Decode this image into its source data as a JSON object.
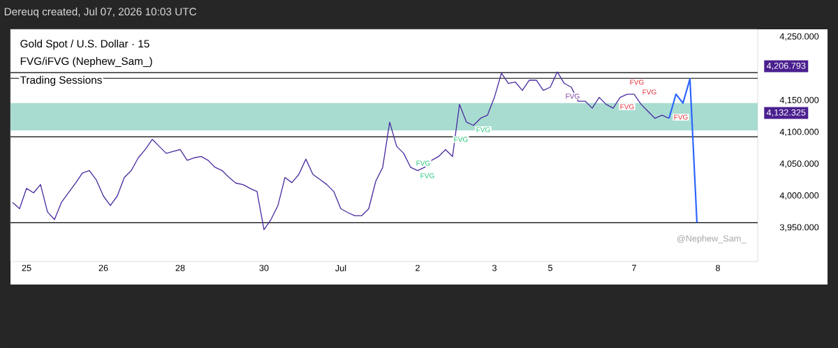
{
  "chart_data": {
    "type": "line",
    "title": "Gold Spot / U.S. Dollar · 15",
    "subtitle": "FVG/iFVG (Nephew_Sam_)",
    "categories": [
      null,
      null,
      "25",
      null,
      null,
      null,
      null,
      null,
      null,
      null,
      null,
      null,
      null,
      "26",
      null,
      null,
      null,
      null,
      null,
      null,
      null,
      null,
      null,
      null,
      "28",
      null,
      null,
      null,
      null,
      null,
      null,
      null,
      null,
      null,
      null,
      null,
      "30",
      null,
      null,
      null,
      null,
      null,
      null,
      null,
      null,
      null,
      null,
      "Jul",
      null,
      null,
      null,
      null,
      null,
      null,
      null,
      null,
      null,
      null,
      "2",
      null,
      null,
      null,
      null,
      null,
      null,
      null,
      null,
      null,
      null,
      "3",
      null,
      null,
      null,
      null,
      null,
      null,
      null,
      "5",
      null,
      null,
      null,
      null,
      null,
      null,
      null,
      null,
      null,
      null,
      null,
      "7",
      null,
      null,
      null,
      null,
      null,
      null,
      null,
      null,
      null,
      null,
      null,
      "8",
      null,
      null,
      null,
      null,
      null
    ],
    "ylim": [
      3897,
      4262
    ],
    "yticks": [
      {
        "value": 3950,
        "label": "3,950.000"
      },
      {
        "value": 4000,
        "label": "4,000.000"
      },
      {
        "value": 4050,
        "label": "4,050.000"
      },
      {
        "value": 4100,
        "label": "4,100.000"
      },
      {
        "value": 4150,
        "label": "4,150.000"
      },
      {
        "value": 4250,
        "label": "4,250.000"
      }
    ],
    "bands": [
      {
        "axis": "y",
        "from": 4103,
        "to": 4146,
        "color": "#a8dcd1"
      }
    ],
    "ref_lines": [
      {
        "axis": "y",
        "value": 4093,
        "color": "#000000"
      },
      {
        "axis": "y",
        "value": 3958,
        "color": "#000000"
      },
      {
        "axis": "y",
        "value": 4194,
        "color": "#000000"
      },
      {
        "axis": "y",
        "value": 4185,
        "color": "#000000"
      }
    ],
    "series": [
      {
        "color": "#4b2ca0",
        "values": [
          3990,
          3980,
          4012,
          4005,
          4018,
          3975,
          3963,
          3990,
          4005,
          4020,
          4036,
          4040,
          4025,
          4000,
          3985,
          4000,
          4029,
          4040,
          4060,
          4073,
          4089,
          4078,
          4067,
          4070,
          4073,
          4056,
          4060,
          4062,
          4056,
          4045,
          4040,
          4029,
          4020,
          4018,
          4012,
          4007,
          3947,
          3963,
          3985,
          4029,
          4021,
          4034,
          4058,
          4034,
          4026,
          4018,
          4007,
          3980,
          3974,
          3969,
          3969,
          3980,
          4023,
          4045,
          4116,
          4078,
          4067,
          4045,
          4040,
          4045,
          4056,
          4062,
          4073,
          4062,
          4144,
          4116,
          4111,
          4122,
          4127,
          4155,
          4193,
          4177,
          4179,
          4166,
          4182,
          4182,
          4166,
          4171,
          4195,
          4177,
          4171,
          4149,
          4149,
          4138,
          4155,
          4144,
          4138,
          4155,
          4160,
          4160,
          4144,
          4133,
          4122,
          4127,
          4122,
          null,
          null,
          null,
          null,
          null,
          null,
          null,
          null,
          null,
          null,
          null,
          null
        ]
      },
      {
        "color": "#2962ff",
        "values": [
          null,
          null,
          null,
          null,
          null,
          null,
          null,
          null,
          null,
          null,
          null,
          null,
          null,
          null,
          null,
          null,
          null,
          null,
          null,
          null,
          null,
          null,
          null,
          null,
          null,
          null,
          null,
          null,
          null,
          null,
          null,
          null,
          null,
          null,
          null,
          null,
          null,
          null,
          null,
          null,
          null,
          null,
          null,
          null,
          null,
          null,
          null,
          null,
          null,
          null,
          null,
          null,
          null,
          null,
          null,
          null,
          null,
          null,
          null,
          null,
          null,
          null,
          null,
          null,
          null,
          null,
          null,
          null,
          null,
          null,
          null,
          null,
          null,
          null,
          null,
          null,
          null,
          null,
          null,
          null,
          null,
          null,
          null,
          null,
          null,
          null,
          null,
          null,
          null,
          null,
          null,
          null,
          null,
          null,
          4122,
          4160,
          4146,
          4184,
          3958,
          null,
          null,
          null,
          null,
          null,
          null,
          null,
          null
        ]
      }
    ],
    "annotations": [
      "Dereuq created, Jul 07, 2026 10:03 UTC",
      "Trading Sessions",
      "@Nephew_Sam_",
      "4,206.793",
      "4,132.325",
      "FVG",
      "FVG",
      "FVG",
      "FVG",
      "FVG",
      "FVG",
      "FVG",
      "FVG",
      "FVG"
    ]
  }
}
